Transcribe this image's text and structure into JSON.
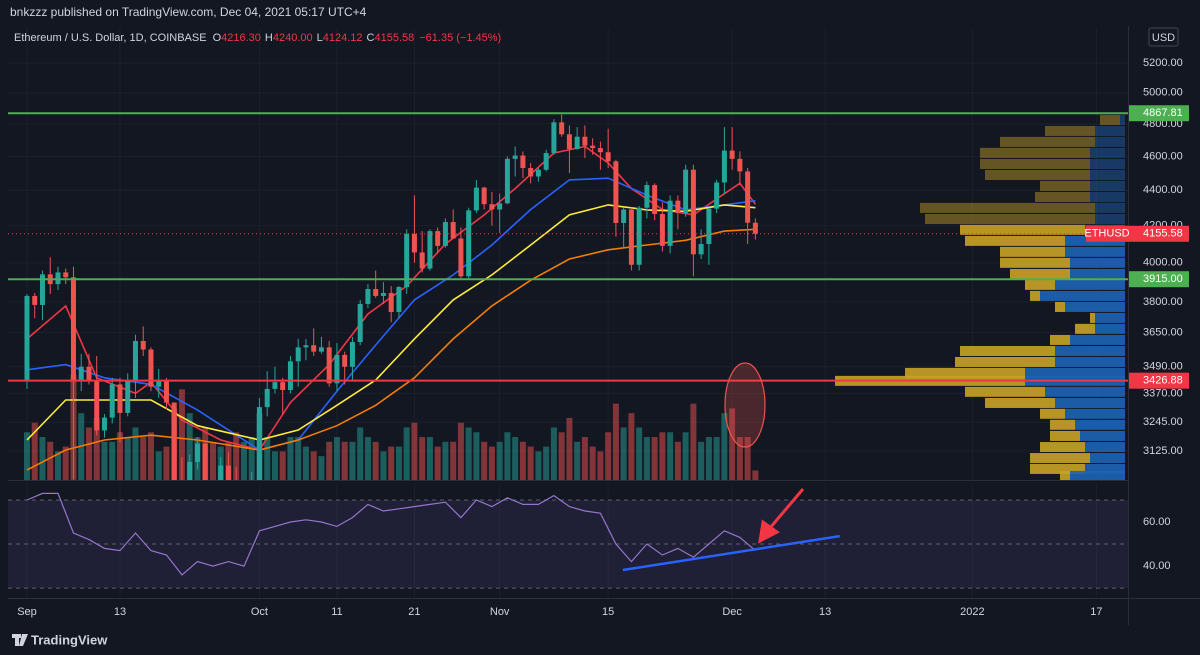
{
  "header": "bnkzzz published on TradingView.com, Dec 04, 2021 05:17 UTC+4",
  "legend": {
    "symbol": "Ethereum / U.S. Dollar, 1D, COINBASE",
    "items": [
      {
        "key": "O",
        "value": "4216.30"
      },
      {
        "key": "H",
        "value": "4240.00"
      },
      {
        "key": "L",
        "value": "4124.12"
      },
      {
        "key": "C",
        "value": "4155.58"
      }
    ],
    "change": "−61.35 (−1.45%)"
  },
  "currency": "USD",
  "logo": "TradingView",
  "chart_data": {
    "type": "candlestick",
    "log_scale": true,
    "grid": true,
    "up_color": "#26a69a",
    "down_color": "#ef5350",
    "xlim": [
      -2.45,
      141.7
    ],
    "xticks": [
      {
        "value": 0,
        "label": "Sep"
      },
      {
        "value": 12,
        "label": "13"
      },
      {
        "value": 30,
        "label": "Oct"
      },
      {
        "value": 40,
        "label": "11"
      },
      {
        "value": 50,
        "label": "21"
      },
      {
        "value": 61,
        "label": "Nov"
      },
      {
        "value": 75,
        "label": "15"
      },
      {
        "value": 91,
        "label": "Dec"
      },
      {
        "value": 103,
        "label": "13"
      },
      {
        "value": 122,
        "label": "2022"
      },
      {
        "value": 138,
        "label": "17"
      }
    ],
    "ylim": [
      3008,
      5444
    ],
    "yticks": [
      {
        "value": 5200,
        "label": "5200.00"
      },
      {
        "value": 5000,
        "label": "5000.00"
      },
      {
        "value": 4800,
        "label": "4800.00"
      },
      {
        "value": 4600,
        "label": "4600.00"
      },
      {
        "value": 4400,
        "label": "4400.00"
      },
      {
        "value": 4200,
        "label": "4200.00"
      },
      {
        "value": 4000,
        "label": "4000.00"
      },
      {
        "value": 3800,
        "label": "3800.00"
      },
      {
        "value": 3650,
        "label": "3650.00"
      },
      {
        "value": 3490,
        "label": "3490.00"
      },
      {
        "value": 3370,
        "label": "3370.00"
      },
      {
        "value": 3245,
        "label": "3245.00"
      },
      {
        "value": 3125,
        "label": "3125.00"
      }
    ],
    "x": [
      0,
      1,
      2,
      3,
      4,
      5,
      6,
      7,
      8,
      9,
      10,
      11,
      12,
      13,
      14,
      15,
      16,
      17,
      18,
      19,
      20,
      21,
      22,
      23,
      24,
      25,
      26,
      27,
      28,
      29,
      30,
      31,
      32,
      33,
      34,
      35,
      36,
      37,
      38,
      39,
      40,
      41,
      42,
      43,
      44,
      45,
      46,
      47,
      48,
      49,
      50,
      51,
      52,
      53,
      54,
      55,
      56,
      57,
      58,
      59,
      60,
      61,
      62,
      63,
      64,
      65,
      66,
      67,
      68,
      69,
      70,
      71,
      72,
      73,
      74,
      75,
      76,
      77,
      78,
      79,
      80,
      81,
      82,
      83,
      84,
      85,
      86,
      87,
      88,
      89,
      90,
      91,
      92,
      93,
      94
    ],
    "open": [
      3430,
      3830,
      3785,
      3940,
      3890,
      3950,
      3925,
      3430,
      3490,
      3425,
      3210,
      3265,
      3410,
      3285,
      3430,
      3610,
      3570,
      3400,
      3430,
      3330,
      2975,
      2765,
      3080,
      3155,
      2930,
      2925,
      3065,
      2930,
      2810,
      2850,
      3000,
      3310,
      3390,
      3420,
      3385,
      3515,
      3580,
      3590,
      3560,
      3580,
      3415,
      3545,
      3490,
      3605,
      3790,
      3865,
      3830,
      3845,
      3750,
      3875,
      4155,
      4055,
      3970,
      4170,
      4090,
      4220,
      4130,
      3930,
      4285,
      4415,
      4320,
      4290,
      4325,
      4585,
      4605,
      4530,
      4480,
      4520,
      4620,
      4810,
      4735,
      4645,
      4720,
      4665,
      4650,
      4625,
      4570,
      4215,
      4290,
      3990,
      4300,
      4430,
      4265,
      4090,
      4340,
      4270,
      4520,
      4045,
      4100,
      4295,
      4445,
      4635,
      4585,
      4510,
      4216.3
    ],
    "high": [
      3840,
      3845,
      3960,
      4030,
      3980,
      3970,
      3980,
      3550,
      3550,
      3540,
      3280,
      3440,
      3440,
      3460,
      3640,
      3680,
      3580,
      3480,
      3440,
      3330,
      3100,
      3110,
      3180,
      3160,
      2950,
      3100,
      3120,
      3060,
      2890,
      3040,
      3350,
      3470,
      3490,
      3440,
      3540,
      3620,
      3620,
      3670,
      3630,
      3610,
      3600,
      3560,
      3630,
      3810,
      3890,
      3960,
      3900,
      3880,
      3880,
      4180,
      4370,
      4170,
      4180,
      4190,
      4240,
      4290,
      4190,
      4300,
      4460,
      4420,
      4390,
      4380,
      4600,
      4660,
      4630,
      4560,
      4530,
      4640,
      4830,
      4860,
      4790,
      4780,
      4790,
      4710,
      4690,
      4770,
      4580,
      4300,
      4300,
      4310,
      4450,
      4440,
      4330,
      4370,
      4370,
      4550,
      4550,
      4180,
      4300,
      4460,
      4780,
      4780,
      4630,
      4530,
      4240
    ],
    "low": [
      3390,
      3720,
      3710,
      3840,
      3860,
      3890,
      3010,
      3380,
      3410,
      3190,
      3180,
      3240,
      3160,
      3270,
      3350,
      3540,
      3380,
      3350,
      3300,
      2950,
      2650,
      2740,
      3050,
      2870,
      2800,
      2880,
      2920,
      2800,
      2740,
      2840,
      2970,
      3270,
      3370,
      3280,
      3370,
      3400,
      3520,
      3540,
      3550,
      3400,
      3380,
      3410,
      3430,
      3590,
      3770,
      3820,
      3790,
      3700,
      3720,
      3840,
      4000,
      3950,
      3960,
      4050,
      4080,
      4130,
      3920,
      3920,
      4270,
      4290,
      4200,
      4160,
      4320,
      4480,
      4470,
      4440,
      4450,
      4510,
      4610,
      4720,
      4500,
      4640,
      4590,
      4610,
      4520,
      4530,
      4140,
      4080,
      3960,
      3960,
      4240,
      4230,
      4060,
      4050,
      4180,
      4250,
      3930,
      4020,
      3990,
      4270,
      4380,
      4520,
      4430,
      4100,
      4124.12
    ],
    "close": [
      3830,
      3785,
      3940,
      3890,
      3950,
      3925,
      3430,
      3490,
      3425,
      3210,
      3265,
      3410,
      3285,
      3430,
      3610,
      3570,
      3400,
      3430,
      3330,
      2975,
      2765,
      3080,
      3155,
      2930,
      2925,
      3065,
      2930,
      2810,
      2850,
      3000,
      3310,
      3390,
      3420,
      3385,
      3515,
      3580,
      3590,
      3560,
      3580,
      3415,
      3545,
      3490,
      3605,
      3790,
      3865,
      3830,
      3845,
      3750,
      3875,
      4155,
      4055,
      3970,
      4170,
      4090,
      4220,
      4130,
      3930,
      4285,
      4415,
      4320,
      4290,
      4325,
      4585,
      4605,
      4530,
      4480,
      4520,
      4620,
      4810,
      4735,
      4645,
      4720,
      4665,
      4650,
      4625,
      4570,
      4215,
      4290,
      3990,
      4300,
      4430,
      4265,
      4090,
      4340,
      4270,
      4520,
      4045,
      4100,
      4295,
      4445,
      4635,
      4585,
      4510,
      4216.3,
      4155.58
    ],
    "volume": [
      50,
      60,
      45,
      40,
      30,
      35,
      110,
      70,
      55,
      65,
      40,
      40,
      50,
      45,
      55,
      45,
      50,
      30,
      35,
      75,
      95,
      70,
      45,
      55,
      40,
      35,
      40,
      50,
      40,
      45,
      70,
      45,
      30,
      30,
      45,
      45,
      35,
      30,
      25,
      40,
      45,
      40,
      40,
      55,
      45,
      40,
      30,
      35,
      35,
      55,
      60,
      45,
      45,
      35,
      40,
      40,
      60,
      55,
      50,
      40,
      35,
      40,
      50,
      45,
      40,
      35,
      30,
      35,
      55,
      50,
      65,
      40,
      45,
      35,
      30,
      50,
      80,
      55,
      70,
      55,
      45,
      45,
      50,
      50,
      40,
      50,
      80,
      40,
      45,
      45,
      70,
      75,
      45,
      45,
      10
    ],
    "ma": [
      {
        "color": "#f23645",
        "x": [
          0,
          5,
          9,
          14,
          16,
          20,
          25,
          30,
          34,
          39,
          44,
          49,
          54,
          59,
          63,
          68,
          72,
          75,
          78,
          82,
          86,
          90,
          92,
          94
        ],
        "values": [
          3620,
          3780,
          3440,
          3370,
          3420,
          3254,
          3170,
          3129,
          3330,
          3500,
          3740,
          3880,
          4100,
          4260,
          4410,
          4620,
          4660,
          4560,
          4410,
          4290,
          4260,
          4380,
          4440,
          4320
        ]
      },
      {
        "color": "#2962ff",
        "x": [
          0,
          5,
          10,
          16,
          22,
          30,
          35,
          40,
          45,
          50,
          55,
          60,
          65,
          70,
          75,
          80,
          85,
          90,
          94
        ],
        "values": [
          3476,
          3500,
          3440,
          3410,
          3297,
          3129,
          3170,
          3380,
          3591,
          3810,
          3937,
          4095,
          4290,
          4460,
          4470,
          4372,
          4288,
          4316,
          4340
        ]
      },
      {
        "color": "#ffeb3b",
        "x": [
          0,
          5,
          10,
          16,
          22,
          30,
          35,
          40,
          45,
          50,
          55,
          60,
          65,
          70,
          75,
          80,
          85,
          90,
          94
        ],
        "values": [
          3170,
          3341,
          3341,
          3341,
          3230,
          3170,
          3212,
          3318,
          3430,
          3620,
          3810,
          3937,
          4095,
          4260,
          4316,
          4288,
          4280,
          4316,
          4300
        ]
      },
      {
        "color": "#f57c00",
        "x": [
          0,
          5,
          10,
          16,
          22,
          30,
          35,
          40,
          45,
          50,
          55,
          60,
          65,
          70,
          75,
          80,
          85,
          90,
          94
        ],
        "values": [
          3048,
          3129,
          3170,
          3190,
          3170,
          3129,
          3170,
          3230,
          3318,
          3440,
          3620,
          3780,
          3910,
          4020,
          4069,
          4095,
          4120,
          4170,
          4180
        ]
      }
    ],
    "levels": [
      {
        "price": 4867.81,
        "label": "4867.81",
        "color": "#4caf50"
      },
      {
        "price": 3915,
        "label": "3915.00",
        "color": "#4caf50"
      },
      {
        "price": 3426.88,
        "label": "3426.88",
        "color": "#f23645"
      }
    ],
    "last_price": {
      "name": "ETHUSD",
      "price": 4155.58,
      "label": "4155.58",
      "color": "#f23645"
    },
    "volume_profile": {
      "up_color": "#1e63b5",
      "down_color": "#c9a227",
      "value_area_high": 4200,
      "price": [
        4825,
        4756,
        4688,
        4621,
        4554,
        4489,
        4425,
        4361,
        4299,
        4237,
        4177,
        4117,
        4058,
        4000,
        3942,
        3886,
        3830,
        3775,
        3721,
        3668,
        3615,
        3563,
        3512,
        3462,
        3426,
        3377,
        3328,
        3281,
        3234,
        3187,
        3141,
        3096,
        3052,
        3024
      ],
      "up": [
        5,
        30,
        30,
        35,
        35,
        35,
        35,
        35,
        30,
        30,
        40,
        60,
        60,
        55,
        55,
        70,
        85,
        60,
        30,
        30,
        55,
        70,
        70,
        100,
        100,
        80,
        70,
        60,
        50,
        45,
        40,
        35,
        40,
        55
      ],
      "down": [
        20,
        50,
        95,
        110,
        110,
        105,
        50,
        55,
        175,
        170,
        125,
        100,
        65,
        70,
        60,
        30,
        10,
        10,
        5,
        20,
        20,
        95,
        100,
        120,
        190,
        80,
        70,
        25,
        25,
        30,
        45,
        60,
        55,
        10
      ]
    },
    "rsi": {
      "type": "line",
      "color": "#9575cd",
      "ylim": [
        25.5,
        77.7
      ],
      "yticks": [
        {
          "value": 60,
          "label": "60.00"
        },
        {
          "value": 40,
          "label": "40.00"
        }
      ],
      "bands": [
        70,
        50,
        30
      ],
      "x": [
        0,
        2,
        4,
        6,
        8,
        10,
        12,
        14,
        16,
        18,
        20,
        22,
        24,
        26,
        28,
        30,
        32,
        34,
        36,
        38,
        40,
        42,
        44,
        46,
        48,
        50,
        52,
        54,
        56,
        58,
        60,
        62,
        64,
        66,
        68,
        70,
        72,
        74,
        76,
        78,
        80,
        82,
        84,
        86,
        88,
        90,
        92,
        94
      ],
      "values": [
        70,
        73,
        73,
        55,
        52,
        48,
        47,
        55,
        47,
        45,
        36,
        42,
        40,
        42,
        40,
        56,
        58,
        60,
        61,
        60,
        58,
        62,
        68,
        65,
        66,
        67,
        68,
        69,
        62,
        70,
        67,
        71,
        68,
        68,
        72,
        67,
        65,
        64,
        50,
        42,
        50,
        45,
        48,
        44,
        50,
        56,
        53,
        47
      ],
      "trendline": {
        "color": "#2962ff",
        "x": [
          76.9,
          104.9
        ],
        "y": [
          38.2,
          53.6
        ]
      }
    }
  }
}
